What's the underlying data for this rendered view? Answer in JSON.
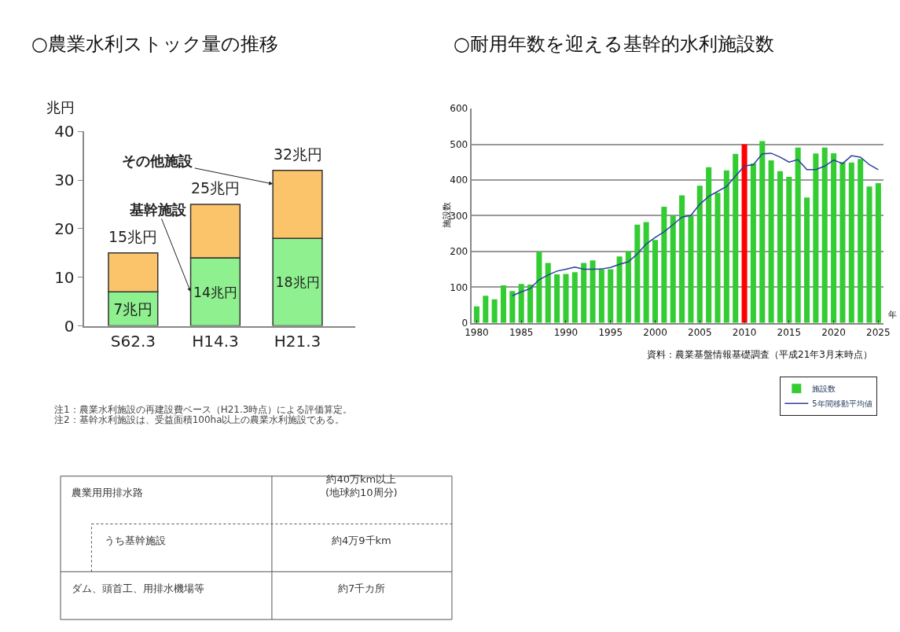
{
  "chart_data": [
    {
      "type": "bar",
      "title": "○農業水利ストック量の推移",
      "ylabel": "兆円",
      "stacked": true,
      "grid": false,
      "legend": false,
      "categories": [
        "S62.3",
        "H14.3",
        "H21.3"
      ],
      "ylim": [
        0,
        40
      ],
      "yticks": [
        0,
        10,
        20,
        30,
        40
      ],
      "series": [
        {
          "name": "基幹施設",
          "color": "#8ef08e",
          "values": [
            7,
            14,
            18
          ],
          "value_labels": [
            "7兆円",
            "14兆円",
            "18兆円"
          ]
        },
        {
          "name": "その他施設",
          "color": "#fbc46a",
          "values": [
            8,
            11,
            14
          ]
        }
      ],
      "totals": [
        "15兆円",
        "25兆円",
        "32兆円"
      ],
      "annotations": [
        "注1：農業水利施設の再建設費ベース（H21.3時点）による評価算定。",
        "注2：基幹水利施設は、受益面積100ha以上の農業水利施設である。"
      ]
    },
    {
      "type": "bar",
      "title": "○耐用年数を迎える基幹的水利施設数",
      "ylabel": "施設数",
      "xlabel": "年",
      "grid": "y",
      "legend": "right",
      "xlim": [
        1979.4,
        2025.6
      ],
      "xticks": [
        1980,
        1985,
        1990,
        1995,
        2000,
        2005,
        2010,
        2015,
        2020,
        2025
      ],
      "ylim": [
        0,
        600
      ],
      "yticks": [
        0,
        100,
        200,
        300,
        400,
        500,
        600
      ],
      "x": [
        1980,
        1981,
        1982,
        1983,
        1984,
        1985,
        1986,
        1987,
        1988,
        1989,
        1990,
        1991,
        1992,
        1993,
        1994,
        1995,
        1996,
        1997,
        1998,
        1999,
        2000,
        2001,
        2002,
        2003,
        2004,
        2005,
        2006,
        2007,
        2008,
        2009,
        2010,
        2011,
        2012,
        2013,
        2014,
        2015,
        2016,
        2017,
        2018,
        2019,
        2020,
        2021,
        2022,
        2023,
        2024,
        2025
      ],
      "series": [
        {
          "name": "施設数",
          "color": "#33cc33",
          "colors": [
            "#33cc33",
            "#33cc33",
            "#33cc33",
            "#33cc33",
            "#33cc33",
            "#33cc33",
            "#33cc33",
            "#33cc33",
            "#33cc33",
            "#33cc33",
            "#33cc33",
            "#33cc33",
            "#33cc33",
            "#33cc33",
            "#33cc33",
            "#33cc33",
            "#33cc33",
            "#33cc33",
            "#33cc33",
            "#33cc33",
            "#33cc33",
            "#33cc33",
            "#33cc33",
            "#33cc33",
            "#33cc33",
            "#33cc33",
            "#33cc33",
            "#33cc33",
            "#33cc33",
            "#33cc33",
            "#ff0000",
            "#33cc33",
            "#33cc33",
            "#33cc33",
            "#33cc33",
            "#33cc33",
            "#33cc33",
            "#33cc33",
            "#33cc33",
            "#33cc33",
            "#33cc33",
            "#33cc33",
            "#33cc33",
            "#33cc33",
            "#33cc33",
            "#33cc33"
          ],
          "values": [
            46,
            76,
            66,
            105,
            89,
            109,
            107,
            199,
            168,
            136,
            137,
            142,
            168,
            175,
            150,
            150,
            186,
            200,
            275,
            282,
            232,
            325,
            300,
            357,
            300,
            384,
            436,
            364,
            427,
            473,
            500,
            446,
            509,
            455,
            425,
            409,
            491,
            351,
            474,
            491,
            475,
            450,
            449,
            459,
            382,
            391
          ]
        },
        {
          "name": "5年間移動平均値",
          "type": "line",
          "color": "#2b3f9e",
          "marker": "none",
          "line_style": "solid",
          "values": [
            null,
            null,
            null,
            null,
            76,
            87,
            96,
            121,
            134,
            145,
            150,
            156,
            150,
            150,
            151,
            155,
            164,
            171,
            193,
            221,
            239,
            255,
            275,
            296,
            301,
            332,
            354,
            368,
            382,
            411,
            439,
            443,
            473,
            475,
            464,
            450,
            457,
            429,
            429,
            439,
            456,
            446,
            468,
            464,
            443,
            429
          ]
        }
      ],
      "annotations": [
        "資料：農業基盤情報基礎調査（平成21年3月末時点）"
      ]
    },
    {
      "type": "other",
      "annotations": [
        "農業用用排水路",
        "約40万km以上\n(地球約10周分)",
        "うち基幹施設",
        "約4万9千km",
        "ダム、頭首工、用排水機場等",
        "約7千カ所"
      ]
    }
  ]
}
